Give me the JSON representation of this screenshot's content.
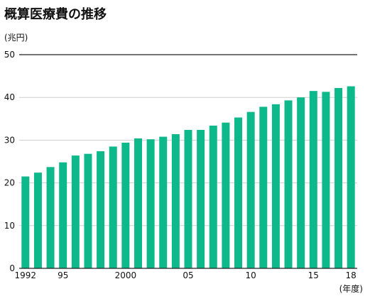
{
  "chart_data": {
    "type": "bar",
    "title": "概算医療費の推移",
    "ylabel": "(兆円)",
    "xlabel": "(年度)",
    "ylim": [
      0,
      50
    ],
    "yticks": [
      "0",
      "10",
      "20",
      "30",
      "40",
      "50"
    ],
    "categories": [
      "1992",
      "1993",
      "1994",
      "1995",
      "1996",
      "1997",
      "1998",
      "1999",
      "2000",
      "2001",
      "2002",
      "2003",
      "2004",
      "2005",
      "2006",
      "2007",
      "2008",
      "2009",
      "2010",
      "2011",
      "2012",
      "2013",
      "2014",
      "2015",
      "2016",
      "2017",
      "2018"
    ],
    "xtick_labels": [
      "1992",
      "",
      "",
      "95",
      "",
      "",
      "",
      "",
      "2000",
      "",
      "",
      "",
      "",
      "05",
      "",
      "",
      "",
      "",
      "10",
      "",
      "",
      "",
      "",
      "15",
      "",
      "",
      "18"
    ],
    "values": [
      21.5,
      22.4,
      23.7,
      24.8,
      26.4,
      26.8,
      27.4,
      28.5,
      29.4,
      30.4,
      30.2,
      30.8,
      31.4,
      32.4,
      32.4,
      33.4,
      34.1,
      35.3,
      36.6,
      37.8,
      38.4,
      39.3,
      40.0,
      41.5,
      41.3,
      42.2,
      42.6
    ],
    "bar_color": "#0db88a",
    "grid": true
  }
}
